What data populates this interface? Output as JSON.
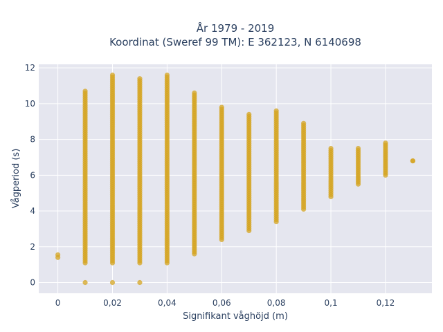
{
  "chart_data": {
    "type": "scatter",
    "title_line1": "År 1979 - 2019",
    "title_line2": "Koordinat (Sweref 99 TM): E 362123, N 6140698",
    "xlabel": "Signifikant våghöjd (m)",
    "ylabel": "Vågperiod (s)",
    "xlim": [
      -0.007,
      0.137
    ],
    "ylim": [
      -0.6,
      12.2
    ],
    "x_ticks": [
      0,
      0.02,
      0.04,
      0.06,
      0.08,
      0.1,
      0.12
    ],
    "x_tick_labels": [
      "0",
      "0,02",
      "0,04",
      "0,06",
      "0,08",
      "0,1",
      "0,12"
    ],
    "y_ticks": [
      0,
      2,
      4,
      6,
      8,
      10,
      12
    ],
    "y_tick_labels": [
      "0",
      "2",
      "4",
      "6",
      "8",
      "10",
      "12"
    ],
    "grid": true,
    "marker_color": "#d4a420",
    "background": "#e5e6ef",
    "columns": [
      {
        "x": 0.0,
        "ymin": 1.4,
        "ymax": 1.55
      },
      {
        "x": 0.01,
        "ymin": 1.1,
        "ymax": 10.7,
        "extra": [
          0.0
        ]
      },
      {
        "x": 0.02,
        "ymin": 1.1,
        "ymax": 11.6,
        "extra": [
          0.0
        ]
      },
      {
        "x": 0.03,
        "ymin": 1.1,
        "ymax": 11.4,
        "extra": [
          0.0
        ]
      },
      {
        "x": 0.04,
        "ymin": 1.1,
        "ymax": 11.6
      },
      {
        "x": 0.05,
        "ymin": 1.6,
        "ymax": 10.6
      },
      {
        "x": 0.06,
        "ymin": 2.4,
        "ymax": 9.8
      },
      {
        "x": 0.07,
        "ymin": 2.9,
        "ymax": 9.4
      },
      {
        "x": 0.08,
        "ymin": 3.4,
        "ymax": 9.6
      },
      {
        "x": 0.09,
        "ymin": 4.1,
        "ymax": 8.9
      },
      {
        "x": 0.1,
        "ymin": 4.8,
        "ymax": 7.5
      },
      {
        "x": 0.11,
        "ymin": 5.5,
        "ymax": 7.5
      },
      {
        "x": 0.12,
        "ymin": 6.0,
        "ymax": 7.8
      },
      {
        "x": 0.13,
        "ymin": 6.8,
        "ymax": 6.8
      }
    ]
  }
}
